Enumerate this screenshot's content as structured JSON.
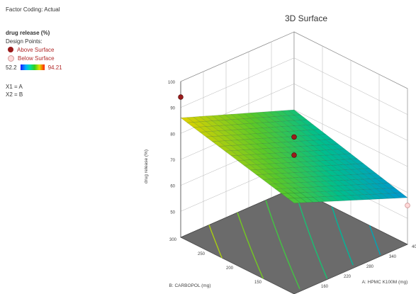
{
  "sidebar": {
    "factor_coding": "Factor Coding: Actual",
    "response": "drug release (%)",
    "design_points": "Design Points:",
    "above_label": "Above Surface",
    "below_label": "Below Surface",
    "scale_min": "52.2",
    "scale_max": "94.21",
    "x1": "X1 = A",
    "x2": "X2 = B"
  },
  "colors": {
    "above_point": "#9b1c1c",
    "below_point": "#ffd9d9",
    "floor": "#6b6b6b"
  },
  "chart_data": {
    "type": "surface",
    "title": "3D Surface",
    "xlabel": "A: HPMC K100M (mg)",
    "ylabel": "B: CARBOPOL (mg)",
    "zlabel": "drug release (%)",
    "xlim": [
      100,
      400
    ],
    "ylim": [
      100,
      300
    ],
    "zlim": [
      40,
      100
    ],
    "x_ticks": [
      "160",
      "220",
      "280",
      "340",
      "400"
    ],
    "y_ticks": [
      "150",
      "200",
      "250",
      "300"
    ],
    "z_ticks": [
      "50",
      "60",
      "70",
      "80",
      "90",
      "100"
    ],
    "surface_corners": [
      {
        "x": 100,
        "y": 300,
        "z": 86
      },
      {
        "x": 400,
        "y": 300,
        "z": 70
      },
      {
        "x": 400,
        "y": 100,
        "z": 58
      },
      {
        "x": 100,
        "y": 100,
        "z": 75
      }
    ],
    "design_points": [
      {
        "x": 100,
        "y": 300,
        "z": 94,
        "position": "above"
      },
      {
        "x": 250,
        "y": 200,
        "z": 80,
        "position": "above"
      },
      {
        "x": 250,
        "y": 200,
        "z": 73,
        "position": "above"
      },
      {
        "x": 400,
        "y": 100,
        "z": 55,
        "position": "below"
      }
    ],
    "contour_lines": 6,
    "legend": "top-left"
  }
}
